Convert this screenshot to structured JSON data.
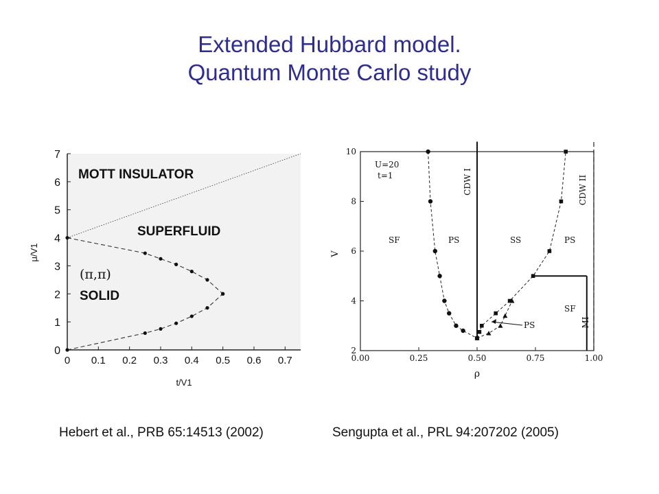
{
  "title": {
    "line1": "Extended Hubbard model.",
    "line2": "Quantum Monte Carlo study"
  },
  "citations": {
    "left": "Hebert et al., PRB 65:14513 (2002)",
    "right": "Sengupta et al., PRL 94:207202 (2005)"
  },
  "chart_data": [
    {
      "type": "line",
      "xlabel": "t/V1",
      "ylabel": "μ/V1",
      "xlim": [
        0,
        0.75
      ],
      "ylim": [
        0,
        7
      ],
      "x_ticks": [
        "0",
        "0.1",
        "0.2",
        "0.3",
        "0.4",
        "0.5",
        "0.6",
        "0.7"
      ],
      "y_ticks": [
        "0",
        "1",
        "2",
        "3",
        "4",
        "5",
        "6",
        "7"
      ],
      "grid": false,
      "background": "#f2f2f2",
      "annotations": [
        "MOTT INSULATOR",
        "SUPERFLUID",
        "(π,π)",
        "SOLID"
      ],
      "series": [
        {
          "style": "dotted",
          "x": [
            0,
            0.75
          ],
          "y": [
            4,
            7
          ]
        },
        {
          "style": "dashed-markers",
          "x": [
            0,
            0.25,
            0.3,
            0.35,
            0.4,
            0.45,
            0.5
          ],
          "y": [
            4,
            3.45,
            3.25,
            3.05,
            2.8,
            2.5,
            2.0
          ]
        },
        {
          "style": "dashed-markers",
          "x": [
            0,
            0.25,
            0.3,
            0.35,
            0.4,
            0.45,
            0.5
          ],
          "y": [
            0,
            0.6,
            0.75,
            0.95,
            1.2,
            1.5,
            2.0
          ]
        }
      ]
    },
    {
      "type": "line",
      "xlabel": "ρ",
      "ylabel": "V",
      "xlim": [
        0,
        1.0
      ],
      "ylim": [
        2,
        10
      ],
      "x_ticks": [
        "0.00",
        "0.25",
        "0.50",
        "0.75",
        "1.00"
      ],
      "y_ticks": [
        "2",
        "4",
        "6",
        "8",
        "10"
      ],
      "grid": false,
      "annotations": [
        "U=20",
        "t=1",
        "SF",
        "PS",
        "SS",
        "PS",
        "SF",
        "PS",
        "CDW I",
        "CDW II",
        "MI"
      ],
      "series": [
        {
          "style": "dashed-circles",
          "x": [
            0.29,
            0.3,
            0.32,
            0.34,
            0.36,
            0.38,
            0.41,
            0.44,
            0.5
          ],
          "y": [
            10,
            8,
            6,
            5,
            4,
            3.5,
            3,
            2.8,
            2.5
          ]
        },
        {
          "style": "dashed-squares",
          "x": [
            0.5,
            0.51,
            0.52,
            0.58,
            0.64,
            0.74,
            0.81,
            0.86,
            0.88
          ],
          "y": [
            2.5,
            2.75,
            3.0,
            3.5,
            4.0,
            5.0,
            6.0,
            8.0,
            10.0
          ]
        },
        {
          "style": "dashed-triangles",
          "x": [
            0.5,
            0.55,
            0.6,
            0.62,
            0.65
          ],
          "y": [
            2.5,
            2.7,
            3.0,
            3.4,
            4.0
          ]
        }
      ],
      "phase_lines": [
        {
          "label": "CDW I",
          "x": [
            0.5,
            0.5
          ],
          "y": [
            2.5,
            10.4
          ],
          "style": "solid"
        },
        {
          "label": "MI",
          "x": [
            0.97,
            0.97
          ],
          "y": [
            2,
            5
          ],
          "style": "solid"
        },
        {
          "label": "",
          "x": [
            0.74,
            0.97
          ],
          "y": [
            5,
            5
          ],
          "style": "solid"
        },
        {
          "label": "CDW II",
          "x": [
            1.0,
            1.0
          ],
          "y": [
            2,
            10.4
          ],
          "style": "dashed"
        }
      ]
    }
  ]
}
